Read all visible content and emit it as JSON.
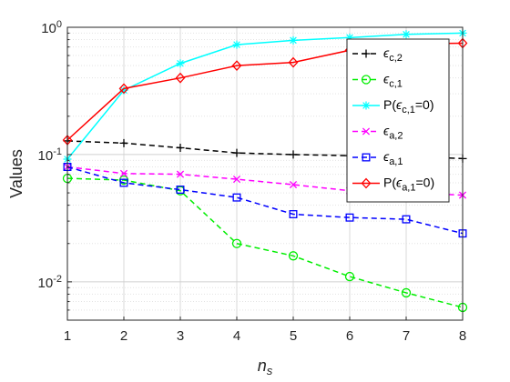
{
  "chart_data": {
    "type": "line",
    "xlabel": "n",
    "xlabel_sub": "s",
    "ylabel": "Values",
    "x": [
      1,
      2,
      3,
      4,
      5,
      6,
      7,
      8
    ],
    "xlim": [
      1,
      8
    ],
    "ylim": [
      0.005,
      1
    ],
    "yscale": "log",
    "grid": true,
    "minor_grid": true,
    "xticks": [
      "1",
      "2",
      "3",
      "4",
      "5",
      "6",
      "7",
      "8"
    ],
    "yticks": [
      {
        "value": 0.01,
        "base": "10",
        "exp": "-2"
      },
      {
        "value": 0.1,
        "base": "10",
        "exp": "-1"
      },
      {
        "value": 1,
        "base": "10",
        "exp": "0"
      }
    ],
    "legend_position": "top-right",
    "series": [
      {
        "name": "ε_c,2",
        "label_main": "ϵ",
        "label_sub": "c,2",
        "color": "#000000",
        "dash": "dashed",
        "marker": "plus",
        "values": [
          0.128,
          0.123,
          0.113,
          0.103,
          0.1,
          0.098,
          0.097,
          0.093
        ]
      },
      {
        "name": "ε_c,1",
        "label_main": "ϵ",
        "label_sub": "c,1",
        "color": "#00ee00",
        "dash": "dashed",
        "marker": "circle",
        "values": [
          0.065,
          0.063,
          0.052,
          0.02,
          0.016,
          0.011,
          0.0082,
          0.0063
        ]
      },
      {
        "name": "P(ε_c,1=0)",
        "label_pre": "P(",
        "label_main": "ϵ",
        "label_sub": "c,1",
        "label_post": "=0)",
        "color": "#00ffff",
        "dash": "solid",
        "marker": "star",
        "values": [
          0.092,
          0.32,
          0.52,
          0.73,
          0.79,
          0.83,
          0.88,
          0.9
        ]
      },
      {
        "name": "ε_a,2",
        "label_main": "ϵ",
        "label_sub": "a,2",
        "color": "#ff00ff",
        "dash": "dashed",
        "marker": "x",
        "values": [
          0.08,
          0.071,
          0.07,
          0.064,
          0.058,
          0.052,
          0.05,
          0.048
        ]
      },
      {
        "name": "ε_a,1",
        "label_main": "ϵ",
        "label_sub": "a,1",
        "color": "#0000ff",
        "dash": "dashed",
        "marker": "square",
        "values": [
          0.08,
          0.06,
          0.053,
          0.046,
          0.034,
          0.032,
          0.031,
          0.024
        ]
      },
      {
        "name": "P(ε_a,1=0)",
        "label_pre": "P(",
        "label_main": "ϵ",
        "label_sub": "a,1",
        "label_post": "=0)",
        "color": "#ff0000",
        "dash": "solid",
        "marker": "diamond",
        "values": [
          0.13,
          0.33,
          0.4,
          0.5,
          0.53,
          0.66,
          0.74,
          0.75
        ]
      }
    ]
  }
}
